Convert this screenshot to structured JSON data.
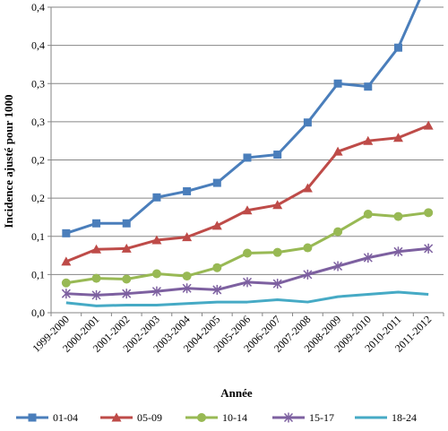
{
  "chart_data": {
    "type": "line",
    "xlabel": "Année",
    "ylabel": "Incidence ajusté pour 1000",
    "x": [
      "1999-2000",
      "2000-2001",
      "2001-2002",
      "2002-2003",
      "2003-2004",
      "2004-2005",
      "2005-2006",
      "2006-2007",
      "2007-2008",
      "2008-2009",
      "2009-2010",
      "2010-2011",
      "2011-2012"
    ],
    "y_ticks": [
      "0,0",
      "0,1",
      "0,1",
      "0,2",
      "0,2",
      "0,3",
      "0,3",
      "0,4",
      "0,4"
    ],
    "ylim": [
      0,
      0.4
    ],
    "grid": "horizontal",
    "legend_position": "bottom",
    "series": [
      {
        "name": "01-04",
        "color": "#4a7ebb",
        "marker": "square",
        "values": [
          0.104,
          0.117,
          0.117,
          0.151,
          0.159,
          0.17,
          0.203,
          0.207,
          0.249,
          0.3,
          0.296,
          0.347,
          0.436
        ]
      },
      {
        "name": "05-09",
        "color": "#be4b48",
        "marker": "triangle",
        "values": [
          0.067,
          0.083,
          0.084,
          0.095,
          0.099,
          0.114,
          0.134,
          0.141,
          0.163,
          0.211,
          0.225,
          0.229,
          0.245
        ]
      },
      {
        "name": "10-14",
        "color": "#98b954",
        "marker": "circle",
        "values": [
          0.039,
          0.045,
          0.044,
          0.051,
          0.048,
          0.059,
          0.078,
          0.079,
          0.085,
          0.106,
          0.129,
          0.126,
          0.131
        ]
      },
      {
        "name": "15-17",
        "color": "#7d60a0",
        "marker": "star",
        "values": [
          0.025,
          0.023,
          0.025,
          0.028,
          0.032,
          0.03,
          0.04,
          0.038,
          0.05,
          0.061,
          0.072,
          0.08,
          0.084
        ]
      },
      {
        "name": "18-24",
        "color": "#46aac5",
        "marker": "none",
        "values": [
          0.013,
          0.009,
          0.01,
          0.01,
          0.012,
          0.014,
          0.014,
          0.017,
          0.014,
          0.021,
          0.024,
          0.027,
          0.024
        ]
      }
    ]
  }
}
